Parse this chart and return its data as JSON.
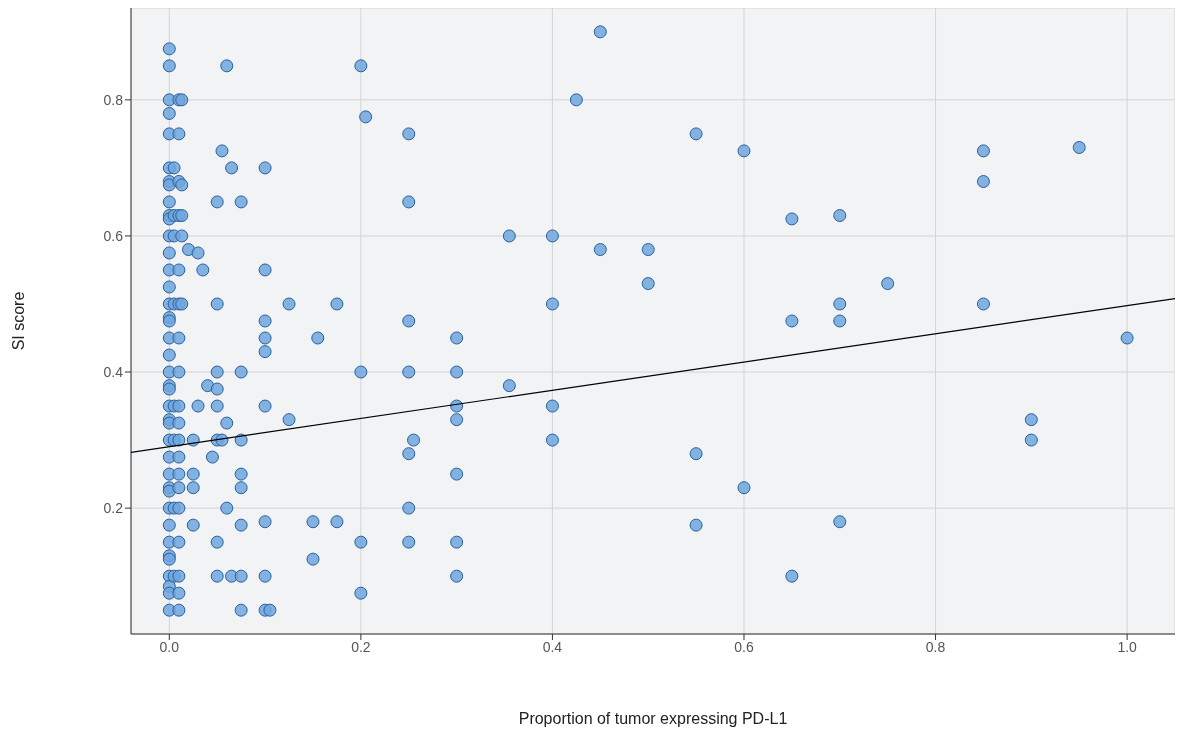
{
  "chart_data": {
    "type": "scatter",
    "xlabel": "Proportion of tumor expressing PD-L1",
    "ylabel": "SI score",
    "xlim": [
      -0.04,
      1.05
    ],
    "ylim": [
      0.015,
      0.935
    ],
    "xticks": [
      {
        "value": 0,
        "label": "0.0"
      },
      0.2,
      0.4,
      0.6,
      0.8,
      {
        "value": 1,
        "label": "1.0"
      }
    ],
    "yticks": [
      0.2,
      0.4,
      0.6,
      0.8
    ],
    "grid": true,
    "series": [
      {
        "color": "#6fa6dd",
        "marker": "circle",
        "x": [
          0,
          0,
          0,
          0,
          0,
          0,
          0,
          0,
          0,
          0,
          0,
          0,
          0,
          0,
          0,
          0,
          0,
          0,
          0,
          0,
          0,
          0,
          0,
          0,
          0,
          0,
          0,
          0,
          0,
          0,
          0,
          0,
          0,
          0,
          0,
          0,
          0,
          0,
          0,
          0,
          0.005,
          0.005,
          0.005,
          0.005,
          0.005,
          0.005,
          0.005,
          0.005,
          0.01,
          0.01,
          0.01,
          0.01,
          0.01,
          0.01,
          0.01,
          0.01,
          0.01,
          0.01,
          0.01,
          0.01,
          0.01,
          0.01,
          0.01,
          0.01,
          0.01,
          0.01,
          0.01,
          0.013,
          0.013,
          0.013,
          0.013,
          0.013,
          0.02,
          0.025,
          0.025,
          0.025,
          0.025,
          0.03,
          0.03,
          0.035,
          0.04,
          0.045,
          0.05,
          0.05,
          0.05,
          0.05,
          0.05,
          0.05,
          0.05,
          0.05,
          0.055,
          0.055,
          0.06,
          0.06,
          0.06,
          0.065,
          0.065,
          0.075,
          0.075,
          0.075,
          0.075,
          0.075,
          0.075,
          0.075,
          0.075,
          0.1,
          0.1,
          0.1,
          0.1,
          0.1,
          0.1,
          0.1,
          0.1,
          0.1,
          0.105,
          0.125,
          0.125,
          0.15,
          0.15,
          0.155,
          0.175,
          0.175,
          0.2,
          0.2,
          0.2,
          0.2,
          0.205,
          0.25,
          0.25,
          0.25,
          0.25,
          0.25,
          0.25,
          0.25,
          0.255,
          0.3,
          0.3,
          0.3,
          0.3,
          0.3,
          0.3,
          0.3,
          0.355,
          0.355,
          0.4,
          0.4,
          0.4,
          0.4,
          0.425,
          0.45,
          0.45,
          0.5,
          0.5,
          0.55,
          0.55,
          0.55,
          0.6,
          0.6,
          0.65,
          0.65,
          0.65,
          0.7,
          0.7,
          0.7,
          0.7,
          0.75,
          0.85,
          0.85,
          0.85,
          0.9,
          0.9,
          0.95,
          1.0
        ],
        "values": [
          0.875,
          0.85,
          0.8,
          0.78,
          0.75,
          0.7,
          0.68,
          0.675,
          0.65,
          0.63,
          0.625,
          0.6,
          0.575,
          0.55,
          0.525,
          0.5,
          0.48,
          0.475,
          0.45,
          0.425,
          0.4,
          0.38,
          0.375,
          0.35,
          0.33,
          0.325,
          0.3,
          0.275,
          0.25,
          0.23,
          0.225,
          0.2,
          0.175,
          0.15,
          0.13,
          0.125,
          0.1,
          0.085,
          0.075,
          0.05,
          0.7,
          0.63,
          0.6,
          0.5,
          0.35,
          0.3,
          0.2,
          0.1,
          0.8,
          0.75,
          0.68,
          0.63,
          0.55,
          0.5,
          0.45,
          0.4,
          0.35,
          0.325,
          0.3,
          0.275,
          0.25,
          0.23,
          0.2,
          0.15,
          0.1,
          0.075,
          0.05,
          0.8,
          0.675,
          0.63,
          0.6,
          0.5,
          0.58,
          0.3,
          0.25,
          0.23,
          0.175,
          0.575,
          0.35,
          0.55,
          0.38,
          0.275,
          0.65,
          0.5,
          0.4,
          0.375,
          0.35,
          0.3,
          0.15,
          0.1,
          0.725,
          0.3,
          0.85,
          0.325,
          0.2,
          0.7,
          0.1,
          0.65,
          0.4,
          0.3,
          0.25,
          0.23,
          0.175,
          0.1,
          0.05,
          0.7,
          0.55,
          0.475,
          0.45,
          0.43,
          0.35,
          0.18,
          0.1,
          0.05,
          0.05,
          0.5,
          0.33,
          0.18,
          0.125,
          0.45,
          0.5,
          0.18,
          0.85,
          0.4,
          0.15,
          0.075,
          0.775,
          0.75,
          0.65,
          0.475,
          0.4,
          0.28,
          0.2,
          0.15,
          0.3,
          0.45,
          0.4,
          0.35,
          0.33,
          0.25,
          0.15,
          0.1,
          0.6,
          0.38,
          0.6,
          0.5,
          0.35,
          0.3,
          0.8,
          0.9,
          0.58,
          0.58,
          0.53,
          0.75,
          0.28,
          0.175,
          0.725,
          0.23,
          0.625,
          0.475,
          0.1,
          0.63,
          0.5,
          0.475,
          0.18,
          0.53,
          0.725,
          0.68,
          0.5,
          0.33,
          0.3,
          0.73,
          0.45
        ]
      },
      {
        "type": "line",
        "marker": "none",
        "color": "#000000",
        "x": [
          -0.04,
          1.05
        ],
        "values": [
          0.282,
          0.508
        ]
      }
    ]
  }
}
